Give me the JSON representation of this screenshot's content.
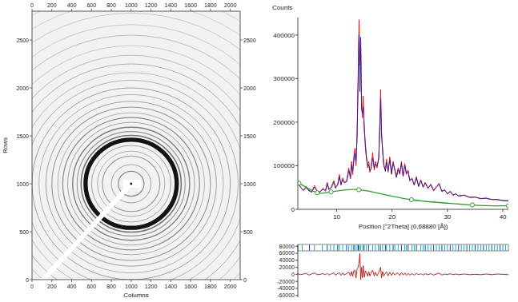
{
  "chart_data": [
    {
      "type": "image",
      "x_label": "Columns",
      "y_label": "Rows",
      "xlim": [
        0,
        2100
      ],
      "ylim": [
        0,
        2800
      ],
      "xticks": [
        0,
        200,
        400,
        600,
        800,
        1000,
        1200,
        1400,
        1600,
        1800,
        2000
      ],
      "yticks": [
        0,
        500,
        1000,
        1500,
        2000,
        2500
      ],
      "center": [
        1000,
        1000
      ],
      "ring_radii": [
        130,
        200,
        290,
        340,
        400,
        460,
        505,
        545,
        590,
        640,
        690,
        740,
        800,
        860,
        930,
        1000,
        1080,
        1160,
        1250,
        1340,
        1440,
        1550,
        1660,
        1780,
        1900,
        2020
      ],
      "ring_intensities": [
        0.45,
        0.35,
        0.4,
        0.3,
        0.35,
        1.0,
        0.55,
        0.4,
        0.5,
        0.35,
        0.45,
        0.3,
        0.4,
        0.35,
        0.3,
        0.35,
        0.3,
        0.25,
        0.3,
        0.25,
        0.2,
        0.25,
        0.2,
        0.2,
        0.15,
        0.15
      ]
    },
    {
      "type": "line",
      "y_label": "Counts",
      "x_label": "Position [°2Theta] (0,68880 [Å])",
      "xlim": [
        3,
        41
      ],
      "ylim": [
        0,
        440000
      ],
      "xticks": [
        10,
        20,
        30,
        40
      ],
      "yticks": [
        0,
        100000,
        200000,
        300000,
        400000
      ],
      "x": [
        3,
        3.5,
        4,
        4.5,
        5,
        5.5,
        6,
        6.5,
        7,
        7.5,
        8,
        8.3,
        8.6,
        9,
        9.5,
        9.8,
        10.2,
        10.5,
        10.8,
        11.1,
        11.4,
        11.8,
        12.2,
        12.5,
        12.7,
        12.9,
        13.1,
        13.3,
        13.5,
        13.7,
        13.9,
        14.05,
        14.2,
        14.35,
        14.5,
        14.65,
        14.8,
        15,
        15.2,
        15.4,
        15.6,
        15.8,
        16,
        16.2,
        16.5,
        16.8,
        17,
        17.3,
        17.6,
        17.8,
        17.95,
        18.1,
        18.3,
        18.5,
        18.8,
        19,
        19.3,
        19.6,
        19.9,
        20.2,
        20.5,
        20.8,
        21.1,
        21.4,
        21.7,
        22,
        22.3,
        22.6,
        22.9,
        23.2,
        23.6,
        24,
        24.4,
        24.8,
        25.2,
        25.6,
        26,
        26.5,
        27,
        27.5,
        28,
        28.5,
        29,
        29.5,
        30,
        30.5,
        31,
        31.5,
        32,
        33,
        34,
        35,
        36,
        37,
        38,
        39,
        40,
        41
      ],
      "series": [
        {
          "color": "#ff0000",
          "values": [
            62000,
            50000,
            44000,
            52000,
            42000,
            40000,
            55000,
            41000,
            40000,
            48000,
            42000,
            62000,
            45000,
            50000,
            66000,
            48000,
            58000,
            80000,
            55000,
            72000,
            60000,
            65000,
            95000,
            70000,
            110000,
            80000,
            120000,
            140000,
            100000,
            180000,
            320000,
            435000,
            330000,
            380000,
            250000,
            210000,
            260000,
            180000,
            150000,
            120000,
            95000,
            110000,
            85000,
            95000,
            130000,
            90000,
            110000,
            95000,
            120000,
            200000,
            275000,
            170000,
            140000,
            100000,
            90000,
            115000,
            85000,
            120000,
            80000,
            110000,
            90000,
            75000,
            95000,
            80000,
            110000,
            75000,
            105000,
            80000,
            90000,
            65000,
            72000,
            55000,
            75000,
            52000,
            68000,
            50000,
            62000,
            48000,
            58000,
            42000,
            52000,
            60000,
            40000,
            45000,
            35000,
            42000,
            32000,
            36000,
            30000,
            33000,
            27000,
            28000,
            24000,
            26000,
            22000,
            23000,
            20000,
            19000
          ]
        },
        {
          "color": "#1c1ca8",
          "values": [
            60000,
            51000,
            43000,
            49000,
            44000,
            39000,
            51000,
            42000,
            40000,
            46000,
            43000,
            59000,
            47000,
            49000,
            62000,
            50000,
            56000,
            75000,
            58000,
            68000,
            62000,
            63000,
            89000,
            74000,
            102000,
            86000,
            110000,
            128000,
            110000,
            165000,
            300000,
            400000,
            270000,
            395000,
            230000,
            220000,
            235000,
            188000,
            140000,
            115000,
            100000,
            102000,
            89000,
            92000,
            118000,
            95000,
            104000,
            99000,
            115000,
            185000,
            255000,
            180000,
            132000,
            105000,
            87000,
            108000,
            89000,
            114000,
            83000,
            105000,
            92000,
            73000,
            91000,
            83000,
            105000,
            77000,
            101000,
            83000,
            87000,
            67000,
            70000,
            57000,
            72000,
            53000,
            66000,
            52000,
            60000,
            49000,
            56000,
            44000,
            51000,
            57000,
            42000,
            44000,
            36000,
            40000,
            33000,
            35000,
            31000,
            32000,
            28000,
            28000,
            25000,
            25000,
            23000,
            22000,
            20000,
            20000
          ]
        },
        {
          "color": "#2e9e2e",
          "marker": "circle",
          "line_style": "smooth",
          "x": [
            3.2,
            6.5,
            9,
            14,
            23.5,
            34.5,
            41
          ],
          "values": [
            60000,
            38000,
            40000,
            45000,
            22000,
            10000,
            8000
          ]
        }
      ]
    },
    {
      "type": "line",
      "xlim": [
        3,
        41
      ],
      "ylim": [
        -65000,
        85000
      ],
      "yticks": [
        -60000,
        -40000,
        -20000,
        0,
        20000,
        40000,
        60000,
        80000
      ],
      "reflections": [
        3.8,
        5.1,
        6,
        7.4,
        8.3,
        8.9,
        9.5,
        10.2,
        10.5,
        11.1,
        11.8,
        12.2,
        12.7,
        13.1,
        13.3,
        13.7,
        13.9,
        14.05,
        14.35,
        14.8,
        15,
        15.4,
        15.8,
        16.5,
        17,
        17.6,
        17.95,
        18.3,
        18.8,
        19,
        19.6,
        20.2,
        20.5,
        21.1,
        21.7,
        22.3,
        22.6,
        22.9,
        23.6,
        24,
        24.4,
        25.2,
        25.6,
        26,
        26.5,
        27,
        27.5,
        28,
        28.5,
        29,
        29.5,
        30,
        30.5,
        31,
        31.5,
        32,
        32.5,
        33,
        33.5,
        34,
        34.5,
        35,
        35.5,
        36,
        36.5,
        37,
        37.5,
        38,
        38.5,
        39,
        39.5,
        40,
        40.5
      ],
      "x": [
        3,
        3.5,
        4,
        4.5,
        5,
        5.5,
        6,
        6.5,
        7,
        7.5,
        8,
        8.3,
        8.6,
        9,
        9.5,
        9.8,
        10.2,
        10.5,
        10.8,
        11.1,
        11.4,
        11.8,
        12.2,
        12.5,
        12.7,
        12.9,
        13.1,
        13.3,
        13.5,
        13.7,
        13.9,
        14.05,
        14.2,
        14.35,
        14.5,
        14.65,
        14.8,
        15,
        15.2,
        15.4,
        15.6,
        15.8,
        16,
        16.2,
        16.5,
        16.8,
        17,
        17.3,
        17.6,
        17.8,
        17.95,
        18.1,
        18.3,
        18.5,
        18.8,
        19,
        19.3,
        19.6,
        19.9,
        20.2,
        20.5,
        20.8,
        21.1,
        21.4,
        21.7,
        22,
        22.3,
        22.6,
        22.9,
        23.2,
        23.6,
        24,
        24.4,
        24.8,
        25.2,
        25.6,
        26,
        26.5,
        27,
        27.5,
        28,
        28.5,
        29,
        29.5,
        30,
        30.5,
        31,
        31.5,
        32,
        33,
        34,
        35,
        36,
        37,
        38,
        39,
        40,
        41
      ],
      "series": [
        {
          "color": "#b01010",
          "values": [
            2000,
            -1000,
            1000,
            3000,
            -2000,
            1000,
            4000,
            -1000,
            0,
            2000,
            -1000,
            3000,
            -2000,
            1000,
            4000,
            -2000,
            2000,
            5000,
            -3000,
            4000,
            -2000,
            2000,
            6000,
            -4000,
            8000,
            -6000,
            10000,
            12000,
            -10000,
            15000,
            20000,
            35000,
            60000,
            -15000,
            20000,
            -10000,
            25000,
            -8000,
            10000,
            5000,
            -5000,
            8000,
            -4000,
            3000,
            12000,
            -5000,
            6000,
            -4000,
            5000,
            15000,
            20000,
            -10000,
            8000,
            -5000,
            3000,
            7000,
            -4000,
            6000,
            -3000,
            5000,
            -2000,
            2000,
            4000,
            -3000,
            5000,
            -2000,
            4000,
            -3000,
            3000,
            -2000,
            2000,
            -2000,
            3000,
            -1000,
            2000,
            -2000,
            2000,
            -1000,
            2000,
            -2000,
            1000,
            3000,
            -2000,
            1000,
            -1000,
            2000,
            -1000,
            1000,
            -1000,
            1000,
            -1000,
            0,
            -1000,
            1000,
            -1000,
            1000,
            0,
            -1000
          ]
        }
      ]
    }
  ]
}
